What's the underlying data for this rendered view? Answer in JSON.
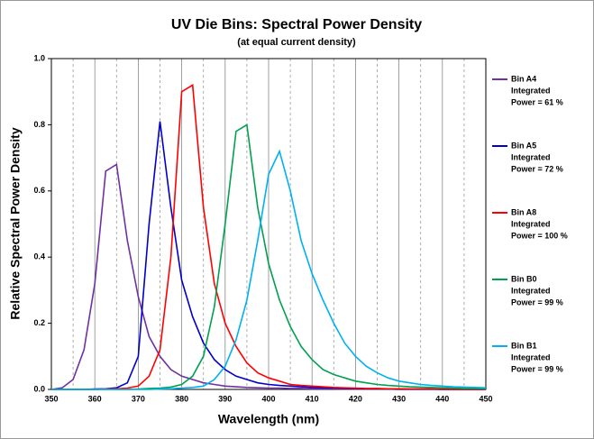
{
  "chart_data": {
    "type": "line",
    "title": "UV Die Bins: Spectral Power Density",
    "subtitle": "(at equal current density)",
    "x_label": "Wavelength (nm)",
    "y_label": "Relative Spectral Power Density",
    "x": [
      350,
      352.5,
      355,
      357.5,
      360,
      362.5,
      365,
      367.5,
      370,
      372.5,
      375,
      377.5,
      380,
      382.5,
      385,
      387.5,
      390,
      392.5,
      395,
      397.5,
      400,
      402.5,
      405,
      407.5,
      410,
      412.5,
      415,
      417.5,
      420,
      422.5,
      425,
      427.5,
      430,
      432.5,
      435,
      437.5,
      440,
      442.5,
      445,
      447.5,
      450
    ],
    "series": [
      {
        "name": "Bin A4",
        "note_lines": [
          "Integrated",
          "Power = 61 %"
        ],
        "color": "#7030a0",
        "values": [
          0,
          0.005,
          0.03,
          0.12,
          0.32,
          0.66,
          0.68,
          0.45,
          0.28,
          0.16,
          0.1,
          0.06,
          0.04,
          0.03,
          0.02,
          0.015,
          0.01,
          0.008,
          0.006,
          0.005,
          0.004,
          0.004,
          0.003,
          0.003,
          0.002,
          0.002,
          0.002,
          0.001,
          0.001,
          0.001,
          0.001,
          0.001,
          0,
          0,
          0,
          0,
          0,
          0,
          0,
          0,
          0
        ]
      },
      {
        "name": "Bin A5",
        "note_lines": [
          "Integrated",
          "Power = 72 %"
        ],
        "color": "#0000cc",
        "values": [
          0,
          0,
          0,
          0,
          0.001,
          0.002,
          0.005,
          0.02,
          0.1,
          0.5,
          0.81,
          0.55,
          0.33,
          0.22,
          0.14,
          0.09,
          0.06,
          0.04,
          0.03,
          0.02,
          0.015,
          0.012,
          0.01,
          0.008,
          0.006,
          0.005,
          0.004,
          0.003,
          0.003,
          0.002,
          0.002,
          0.001,
          0.001,
          0.001,
          0.001,
          0.001,
          0,
          0,
          0,
          0,
          0
        ]
      },
      {
        "name": "Bin A8",
        "note_lines": [
          "Integrated",
          "Power = 100 %"
        ],
        "color": "#ff0000",
        "values": [
          0,
          0,
          0,
          0,
          0,
          0.001,
          0.002,
          0.004,
          0.01,
          0.04,
          0.12,
          0.4,
          0.9,
          0.92,
          0.55,
          0.32,
          0.2,
          0.13,
          0.08,
          0.05,
          0.035,
          0.025,
          0.015,
          0.012,
          0.01,
          0.008,
          0.006,
          0.005,
          0.004,
          0.003,
          0.003,
          0.002,
          0.002,
          0.001,
          0.001,
          0.001,
          0.001,
          0,
          0,
          0,
          0
        ]
      },
      {
        "name": "Bin B0",
        "note_lines": [
          "Integrated",
          "Power = 99 %"
        ],
        "color": "#00a050",
        "values": [
          0,
          0,
          0,
          0,
          0,
          0,
          0,
          0,
          0.001,
          0.003,
          0.004,
          0.007,
          0.015,
          0.04,
          0.1,
          0.25,
          0.5,
          0.78,
          0.8,
          0.55,
          0.38,
          0.27,
          0.19,
          0.13,
          0.09,
          0.06,
          0.045,
          0.035,
          0.025,
          0.02,
          0.015,
          0.012,
          0.01,
          0.008,
          0.007,
          0.006,
          0.005,
          0.004,
          0.003,
          0.003,
          0.002
        ]
      },
      {
        "name": "Bin B1",
        "note_lines": [
          "Integrated",
          "Power = 99 %"
        ],
        "color": "#00b0f0",
        "values": [
          0,
          0,
          0,
          0,
          0,
          0,
          0,
          0,
          0,
          0,
          0.001,
          0.002,
          0.004,
          0.006,
          0.01,
          0.03,
          0.07,
          0.15,
          0.27,
          0.45,
          0.65,
          0.72,
          0.6,
          0.45,
          0.35,
          0.27,
          0.2,
          0.14,
          0.1,
          0.07,
          0.05,
          0.035,
          0.025,
          0.02,
          0.015,
          0.012,
          0.01,
          0.008,
          0.007,
          0.006,
          0.005
        ]
      }
    ],
    "xlim": [
      350,
      450
    ],
    "xticks": [
      350,
      360,
      370,
      380,
      390,
      400,
      410,
      420,
      430,
      440,
      450
    ],
    "minor_xticks": [
      355,
      365,
      375,
      385,
      395,
      405,
      415,
      425,
      435,
      445
    ],
    "ylim": [
      0,
      1
    ],
    "yticks": [
      {
        "value": 0,
        "label": "0.0"
      },
      0.2,
      0.4,
      0.6,
      0.8,
      {
        "value": 1,
        "label": "1.0"
      }
    ],
    "grid": true,
    "legend": "right"
  }
}
